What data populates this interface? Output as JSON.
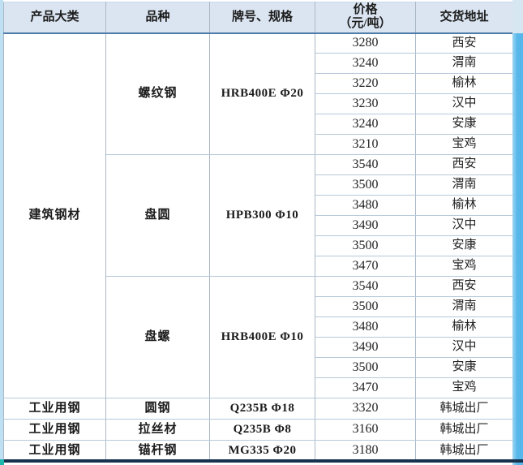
{
  "header": {
    "product_category": "产品大类",
    "variety": "品种",
    "grade_spec": "牌号、规格",
    "price_line1": "价格",
    "price_line2": "（元/吨）",
    "delivery": "交货地址"
  },
  "building": {
    "category": "建筑钢材",
    "groups": [
      {
        "variety": "螺纹钢",
        "spec": "HRB400E Φ20",
        "entries": [
          {
            "price": "3280",
            "location": "西安"
          },
          {
            "price": "3240",
            "location": "渭南"
          },
          {
            "price": "3220",
            "location": "榆林"
          },
          {
            "price": "3230",
            "location": "汉中"
          },
          {
            "price": "3240",
            "location": "安康"
          },
          {
            "price": "3210",
            "location": "宝鸡"
          }
        ]
      },
      {
        "variety": "盘圆",
        "spec": "HPB300 Φ10",
        "entries": [
          {
            "price": "3540",
            "location": "西安"
          },
          {
            "price": "3500",
            "location": "渭南"
          },
          {
            "price": "3480",
            "location": "榆林"
          },
          {
            "price": "3490",
            "location": "汉中"
          },
          {
            "price": "3500",
            "location": "安康"
          },
          {
            "price": "3470",
            "location": "宝鸡"
          }
        ]
      },
      {
        "variety": "盘螺",
        "spec": "HRB400E Φ10",
        "entries": [
          {
            "price": "3540",
            "location": "西安"
          },
          {
            "price": "3500",
            "location": "渭南"
          },
          {
            "price": "3480",
            "location": "榆林"
          },
          {
            "price": "3490",
            "location": "汉中"
          },
          {
            "price": "3500",
            "location": "安康"
          },
          {
            "price": "3470",
            "location": "宝鸡"
          }
        ]
      }
    ]
  },
  "industrial_rows": [
    {
      "category": "工业用钢",
      "variety": "圆钢",
      "spec": "Q235B Φ18",
      "price": "3320",
      "location": "韩城出厂"
    },
    {
      "category": "工业用钢",
      "variety": "拉丝材",
      "spec": "Q235B Φ8",
      "price": "3160",
      "location": "韩城出厂"
    },
    {
      "category": "工业用钢",
      "variety": "锚杆钢",
      "spec": "MG335 Φ20",
      "price": "3180",
      "location": "韩城出厂"
    }
  ],
  "colors": {
    "header_bg": "#dbe5f1",
    "grid_border": "#b7c9da",
    "header_bottom_border": "#507cab",
    "left_strip": "#bfe0f2",
    "right_strip": "#57b7ea",
    "bottom_line": "#16324f",
    "corner_mark": "#1cb8ae"
  }
}
